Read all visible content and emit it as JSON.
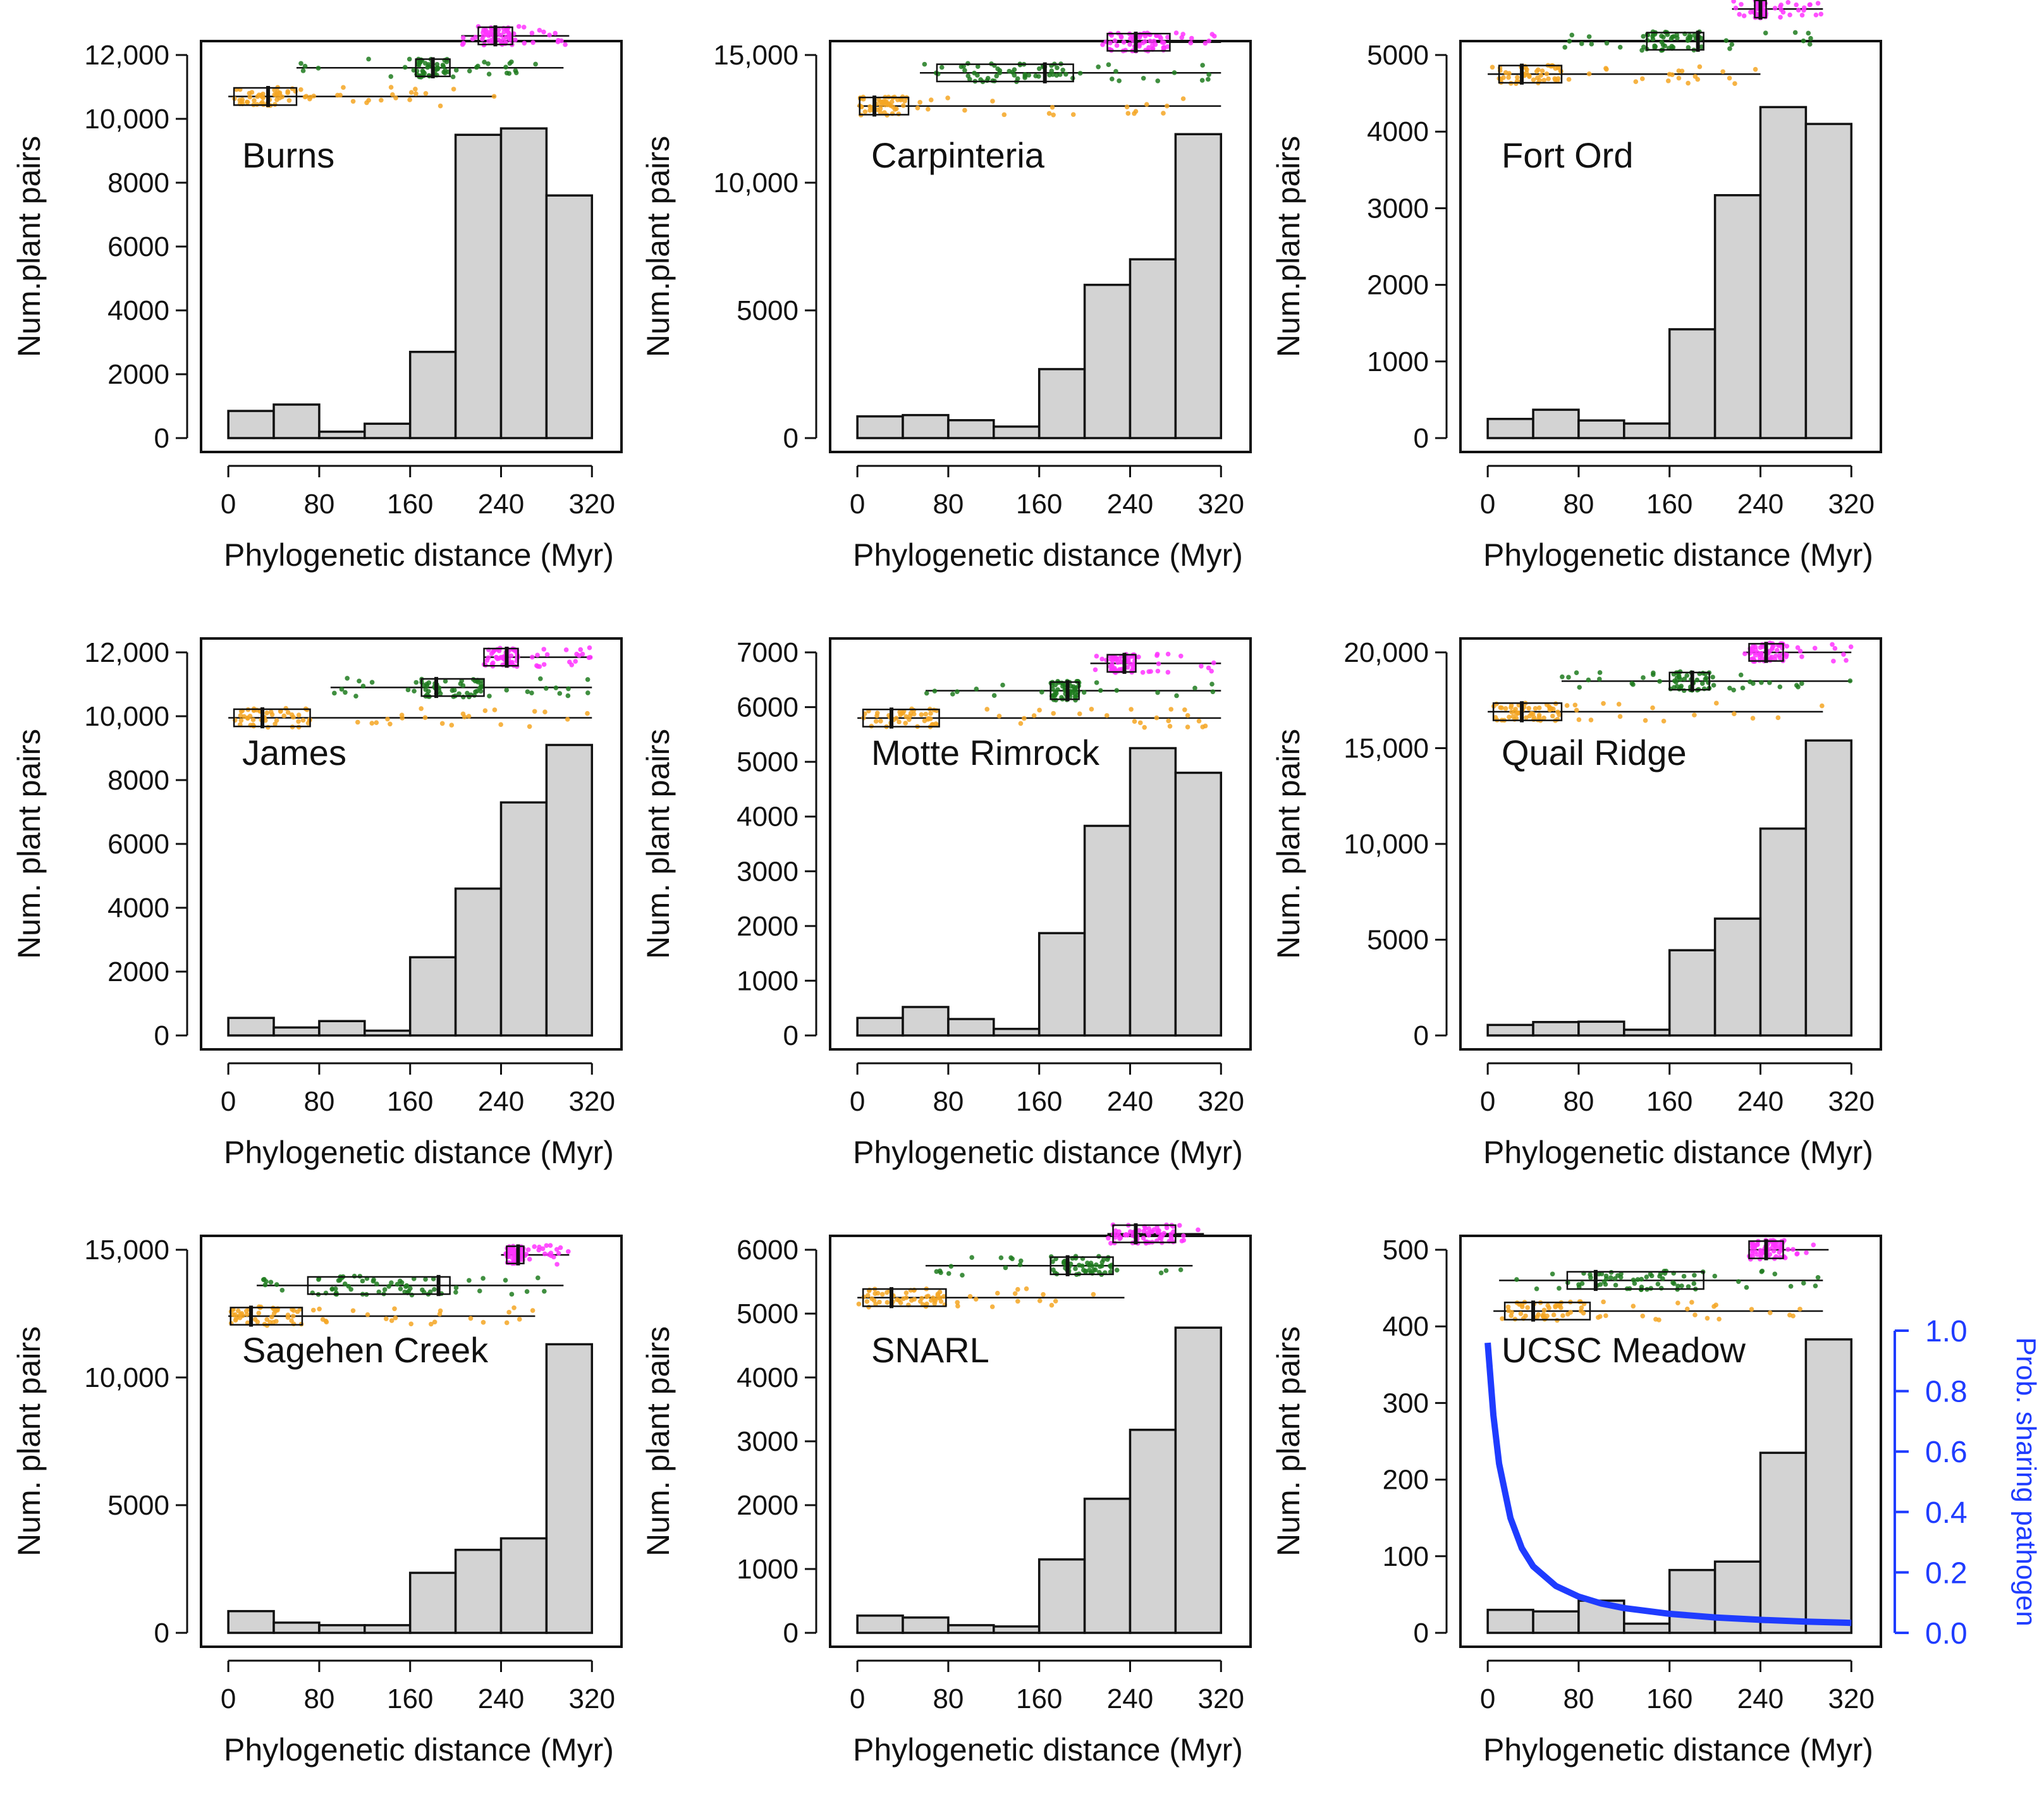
{
  "chart_data": [
    {
      "type": "bar",
      "site": "Burns",
      "categories": [
        "0-40",
        "40-80",
        "80-120",
        "120-160",
        "160-200",
        "200-240",
        "240-280",
        "280-320"
      ],
      "values": [
        850,
        1050,
        200,
        450,
        2700,
        9500,
        9700,
        7600
      ],
      "xlabel": "Phylogenetic distance (Myr)",
      "ylabel": "Num.plant pairs",
      "ylim": [
        0,
        12000
      ],
      "yticks": [
        0,
        2000,
        4000,
        6000,
        8000,
        10000,
        12000
      ],
      "ytick_labels": [
        "0",
        "2000",
        "4000",
        "6000",
        "8000",
        "10,000",
        "12,000"
      ],
      "xticks": [
        0,
        80,
        160,
        240,
        320
      ],
      "xtick_labels": [
        "0",
        "80",
        "160",
        "240",
        "320"
      ],
      "boxplots": [
        {
          "group": "orange",
          "color": "#f5a623",
          "y": 10700,
          "min": 0,
          "q1": 5,
          "median": 35,
          "q3": 60,
          "max": 235
        },
        {
          "group": "green",
          "color": "#1e7b1e",
          "y": 11600,
          "min": 60,
          "q1": 165,
          "median": 180,
          "q3": 195,
          "max": 295
        },
        {
          "group": "magenta",
          "color": "#ff33ff",
          "y": 12600,
          "min": 205,
          "q1": 220,
          "median": 235,
          "q3": 250,
          "max": 300
        }
      ]
    },
    {
      "type": "bar",
      "site": "Carpinteria",
      "categories": [
        "0-40",
        "40-80",
        "80-120",
        "120-160",
        "160-200",
        "200-240",
        "240-280",
        "280-320"
      ],
      "values": [
        850,
        900,
        700,
        450,
        2700,
        6000,
        7000,
        11900
      ],
      "xlabel": "Phylogenetic distance (Myr)",
      "ylabel": "Num.plant pairs",
      "ylim": [
        0,
        15000
      ],
      "yticks": [
        0,
        5000,
        10000,
        15000
      ],
      "ytick_labels": [
        "0",
        "5000",
        "10,000",
        "15,000"
      ],
      "xticks": [
        0,
        80,
        160,
        240,
        320
      ],
      "xtick_labels": [
        "0",
        "80",
        "160",
        "240",
        "320"
      ],
      "boxplots": [
        {
          "group": "orange",
          "color": "#f5a623",
          "y": 13000,
          "min": 0,
          "q1": 2,
          "median": 15,
          "q3": 45,
          "max": 320
        },
        {
          "group": "green",
          "color": "#1e7b1e",
          "y": 14300,
          "min": 55,
          "q1": 70,
          "median": 165,
          "q3": 190,
          "max": 320
        },
        {
          "group": "magenta",
          "color": "#ff33ff",
          "y": 15500,
          "min": 215,
          "q1": 220,
          "median": 245,
          "q3": 275,
          "max": 320
        }
      ]
    },
    {
      "type": "bar",
      "site": "Fort Ord",
      "categories": [
        "0-40",
        "40-80",
        "80-120",
        "120-160",
        "160-200",
        "200-240",
        "240-280",
        "280-320"
      ],
      "values": [
        250,
        370,
        230,
        190,
        1420,
        3170,
        4320,
        4100
      ],
      "xlabel": "Phylogenetic distance (Myr)",
      "ylabel": "Num.plant pairs",
      "ylim": [
        0,
        5000
      ],
      "yticks": [
        0,
        1000,
        2000,
        3000,
        4000,
        5000
      ],
      "ytick_labels": [
        "0",
        "1000",
        "2000",
        "3000",
        "4000",
        "5000"
      ],
      "xticks": [
        0,
        80,
        160,
        240,
        320
      ],
      "xtick_labels": [
        "0",
        "80",
        "160",
        "240",
        "320"
      ],
      "boxplots": [
        {
          "group": "orange",
          "color": "#f5a623",
          "y": 4750,
          "min": 0,
          "q1": 10,
          "median": 30,
          "q3": 65,
          "max": 240
        },
        {
          "group": "green",
          "color": "#1e7b1e",
          "y": 5180,
          "min": 65,
          "q1": 140,
          "median": 185,
          "q3": 190,
          "max": 295
        },
        {
          "group": "magenta",
          "color": "#ff33ff",
          "y": 5600,
          "min": 215,
          "q1": 235,
          "median": 240,
          "q3": 245,
          "max": 295
        }
      ]
    },
    {
      "type": "bar",
      "site": "James",
      "categories": [
        "0-40",
        "40-80",
        "80-120",
        "120-160",
        "160-200",
        "200-240",
        "240-280",
        "280-320"
      ],
      "values": [
        550,
        250,
        450,
        150,
        2450,
        4600,
        7300,
        9100
      ],
      "xlabel": "Phylogenetic distance (Myr)",
      "ylabel": "Num. plant pairs",
      "ylim": [
        0,
        12000
      ],
      "yticks": [
        0,
        2000,
        4000,
        6000,
        8000,
        10000,
        12000
      ],
      "ytick_labels": [
        "0",
        "2000",
        "4000",
        "6000",
        "8000",
        "10,000",
        "12,000"
      ],
      "xticks": [
        0,
        80,
        160,
        240,
        320
      ],
      "xtick_labels": [
        "0",
        "80",
        "160",
        "240",
        "320"
      ],
      "boxplots": [
        {
          "group": "orange",
          "color": "#f5a623",
          "y": 9950,
          "min": 0,
          "q1": 5,
          "median": 30,
          "q3": 72,
          "max": 320
        },
        {
          "group": "green",
          "color": "#1e7b1e",
          "y": 10900,
          "min": 90,
          "q1": 170,
          "median": 183,
          "q3": 225,
          "max": 320
        },
        {
          "group": "magenta",
          "color": "#ff33ff",
          "y": 11850,
          "min": 225,
          "q1": 225,
          "median": 245,
          "q3": 255,
          "max": 320
        }
      ]
    },
    {
      "type": "bar",
      "site": "Motte Rimrock",
      "categories": [
        "0-40",
        "40-80",
        "80-120",
        "120-160",
        "160-200",
        "200-240",
        "240-280",
        "280-320"
      ],
      "values": [
        320,
        520,
        300,
        120,
        1870,
        3830,
        5250,
        4800
      ],
      "xlabel": "Phylogenetic distance (Myr)",
      "ylabel": "Num. plant pairs",
      "ylim": [
        0,
        7000
      ],
      "yticks": [
        0,
        1000,
        2000,
        3000,
        4000,
        5000,
        6000,
        7000
      ],
      "ytick_labels": [
        "0",
        "1000",
        "2000",
        "3000",
        "4000",
        "5000",
        "6000",
        "7000"
      ],
      "xticks": [
        0,
        80,
        160,
        240,
        320
      ],
      "xtick_labels": [
        "0",
        "80",
        "160",
        "240",
        "320"
      ],
      "boxplots": [
        {
          "group": "orange",
          "color": "#f5a623",
          "y": 5800,
          "min": 0,
          "q1": 5,
          "median": 30,
          "q3": 72,
          "max": 320
        },
        {
          "group": "green",
          "color": "#1e7b1e",
          "y": 6300,
          "min": 60,
          "q1": 170,
          "median": 185,
          "q3": 195,
          "max": 320
        },
        {
          "group": "magenta",
          "color": "#ff33ff",
          "y": 6800,
          "min": 205,
          "q1": 220,
          "median": 235,
          "q3": 245,
          "max": 320
        }
      ]
    },
    {
      "type": "bar",
      "site": "Quail Ridge",
      "categories": [
        "0-40",
        "40-80",
        "80-120",
        "120-160",
        "160-200",
        "200-240",
        "240-280",
        "280-320"
      ],
      "values": [
        550,
        700,
        720,
        300,
        4450,
        6100,
        10800,
        15400
      ],
      "xlabel": "Phylogenetic distance (Myr)",
      "ylabel": "Num. plant pairs",
      "ylim": [
        0,
        20000
      ],
      "yticks": [
        0,
        5000,
        10000,
        15000,
        20000
      ],
      "ytick_labels": [
        "0",
        "5000",
        "10,000",
        "15,000",
        "20,000"
      ],
      "xticks": [
        0,
        80,
        160,
        240,
        320
      ],
      "xtick_labels": [
        "0",
        "80",
        "160",
        "240",
        "320"
      ],
      "boxplots": [
        {
          "group": "orange",
          "color": "#f5a623",
          "y": 16900,
          "min": 0,
          "q1": 5,
          "median": 30,
          "q3": 65,
          "max": 295
        },
        {
          "group": "green",
          "color": "#1e7b1e",
          "y": 18500,
          "min": 65,
          "q1": 160,
          "median": 180,
          "q3": 195,
          "max": 320
        },
        {
          "group": "magenta",
          "color": "#ff33ff",
          "y": 20000,
          "min": 225,
          "q1": 230,
          "median": 245,
          "q3": 260,
          "max": 320
        }
      ]
    },
    {
      "type": "bar",
      "site": "Sagehen Creek",
      "categories": [
        "0-40",
        "40-80",
        "80-120",
        "120-160",
        "160-200",
        "200-240",
        "240-280",
        "280-320"
      ],
      "values": [
        850,
        400,
        300,
        300,
        2350,
        3250,
        3700,
        11300
      ],
      "xlabel": "Phylogenetic distance (Myr)",
      "ylabel": "Num. plant pairs",
      "ylim": [
        0,
        15000
      ],
      "yticks": [
        0,
        5000,
        10000,
        15000
      ],
      "ytick_labels": [
        "0",
        "5000",
        "10,000",
        "15,000"
      ],
      "xticks": [
        0,
        80,
        160,
        240,
        320
      ],
      "xtick_labels": [
        "0",
        "80",
        "160",
        "240",
        "320"
      ],
      "boxplots": [
        {
          "group": "orange",
          "color": "#f5a623",
          "y": 12400,
          "min": 0,
          "q1": 2,
          "median": 20,
          "q3": 65,
          "max": 270
        },
        {
          "group": "green",
          "color": "#1e7b1e",
          "y": 13600,
          "min": 25,
          "q1": 70,
          "median": 185,
          "q3": 195,
          "max": 295
        },
        {
          "group": "magenta",
          "color": "#ff33ff",
          "y": 14800,
          "min": 240,
          "q1": 245,
          "median": 255,
          "q3": 260,
          "max": 300
        }
      ]
    },
    {
      "type": "bar",
      "site": "SNARL",
      "categories": [
        "0-40",
        "40-80",
        "80-120",
        "120-160",
        "160-200",
        "200-240",
        "240-280",
        "280-320"
      ],
      "values": [
        270,
        240,
        120,
        100,
        1150,
        2100,
        3180,
        4780
      ],
      "xlabel": "Phylogenetic distance (Myr)",
      "ylabel": "Num. plant pairs",
      "ylim": [
        0,
        6000
      ],
      "yticks": [
        0,
        1000,
        2000,
        3000,
        4000,
        5000,
        6000
      ],
      "ytick_labels": [
        "0",
        "1000",
        "2000",
        "3000",
        "4000",
        "5000",
        "6000"
      ],
      "xticks": [
        0,
        80,
        160,
        240,
        320
      ],
      "xtick_labels": [
        "0",
        "80",
        "160",
        "240",
        "320"
      ],
      "boxplots": [
        {
          "group": "orange",
          "color": "#f5a623",
          "y": 5250,
          "min": 0,
          "q1": 5,
          "median": 30,
          "q3": 78,
          "max": 235
        },
        {
          "group": "green",
          "color": "#1e7b1e",
          "y": 5750,
          "min": 60,
          "q1": 170,
          "median": 185,
          "q3": 225,
          "max": 295
        },
        {
          "group": "magenta",
          "color": "#ff33ff",
          "y": 6250,
          "min": 220,
          "q1": 225,
          "median": 245,
          "q3": 280,
          "max": 305
        }
      ]
    },
    {
      "type": "bar",
      "site": "UCSC Meadow",
      "categories": [
        "0-40",
        "40-80",
        "80-120",
        "120-160",
        "160-200",
        "200-240",
        "240-280",
        "280-320"
      ],
      "values": [
        30,
        28,
        42,
        12,
        82,
        93,
        235,
        383
      ],
      "xlabel": "Phylogenetic distance (Myr)",
      "ylabel": "Num. plant pairs",
      "ylim": [
        0,
        500
      ],
      "yticks": [
        0,
        100,
        200,
        300,
        400,
        500
      ],
      "ytick_labels": [
        "0",
        "100",
        "200",
        "300",
        "400",
        "500"
      ],
      "xticks": [
        0,
        80,
        160,
        240,
        320
      ],
      "xtick_labels": [
        "0",
        "80",
        "160",
        "240",
        "320"
      ],
      "right_axis": {
        "label": "Prob. sharing pathogen",
        "ylim": [
          0,
          1.0
        ],
        "ticks": [
          0.0,
          0.2,
          0.4,
          0.6,
          0.8,
          1.0
        ],
        "tick_labels": [
          "0.0",
          "0.2",
          "0.4",
          "0.6",
          "0.8",
          "1.0"
        ],
        "color": "#1f3cff"
      },
      "curve": {
        "name": "Prob. sharing pathogen",
        "color": "#1f3cff",
        "x": [
          0,
          5,
          10,
          20,
          30,
          40,
          60,
          80,
          100,
          120,
          160,
          200,
          240,
          280,
          320
        ],
        "y": [
          0.96,
          0.72,
          0.56,
          0.38,
          0.28,
          0.22,
          0.155,
          0.12,
          0.097,
          0.082,
          0.063,
          0.051,
          0.043,
          0.037,
          0.033
        ]
      },
      "boxplots": [
        {
          "group": "orange",
          "color": "#f5a623",
          "y": 420,
          "min": 5,
          "q1": 15,
          "median": 40,
          "q3": 90,
          "max": 295
        },
        {
          "group": "green",
          "color": "#1e7b1e",
          "y": 460,
          "min": 10,
          "q1": 70,
          "median": 95,
          "q3": 190,
          "max": 295
        },
        {
          "group": "magenta",
          "color": "#ff33ff",
          "y": 500,
          "min": 230,
          "q1": 230,
          "median": 245,
          "q3": 260,
          "max": 300
        }
      ]
    }
  ]
}
